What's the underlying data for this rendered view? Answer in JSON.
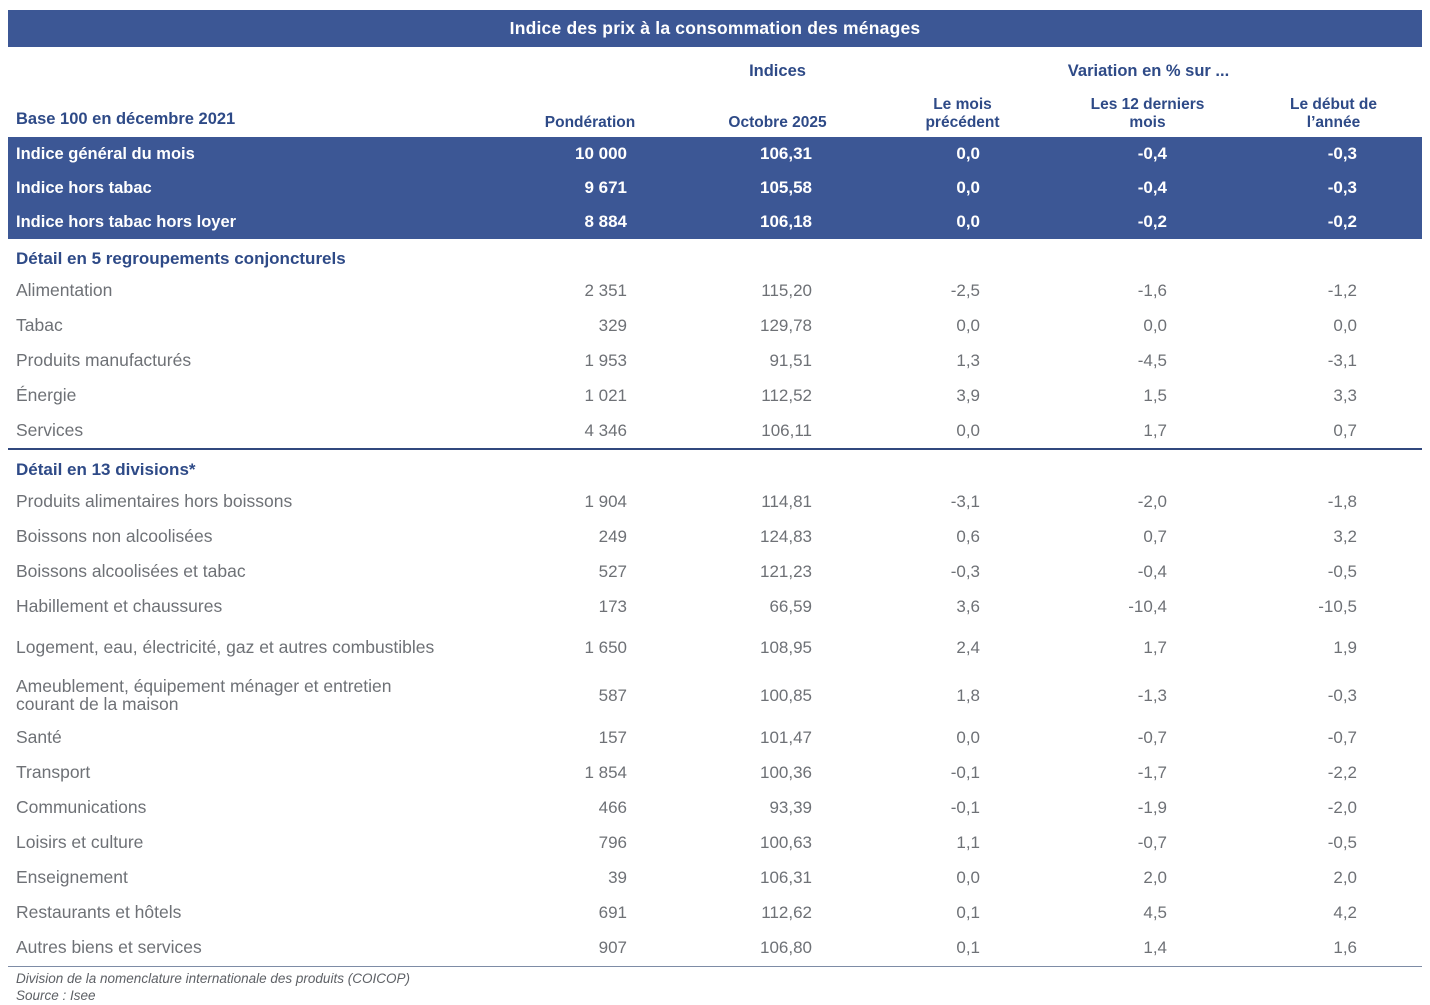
{
  "title": "Indice des prix à la consommation des ménages",
  "header": {
    "group_indices": "Indices",
    "group_variation": "Variation en % sur ...",
    "base_label": "Base 100 en décembre 2021",
    "columns": [
      "Pondération",
      "Octobre 2025",
      "Le mois\nprécédent",
      "Les 12 derniers\nmois",
      "Le début de\nl’année"
    ]
  },
  "summary_rows": [
    {
      "label": "Indice général du mois",
      "values": [
        "10 000",
        "106,31",
        "0,0",
        "-0,4",
        "-0,3"
      ]
    },
    {
      "label": "Indice hors tabac",
      "values": [
        "9 671",
        "105,58",
        "0,0",
        "-0,4",
        "-0,3"
      ]
    },
    {
      "label": "Indice hors tabac hors loyer",
      "values": [
        "8 884",
        "106,18",
        "0,0",
        "-0,2",
        "-0,2"
      ]
    }
  ],
  "sections": [
    {
      "heading": "Détail en 5 regroupements conjoncturels",
      "rows": [
        {
          "label": "Alimentation",
          "values": [
            "2 351",
            "115,20",
            "-2,5",
            "-1,6",
            "-1,2"
          ]
        },
        {
          "label": "Tabac",
          "values": [
            "329",
            "129,78",
            "0,0",
            "0,0",
            "0,0"
          ]
        },
        {
          "label": "Produits manufacturés",
          "values": [
            "1 953",
            "91,51",
            "1,3",
            "-4,5",
            "-3,1"
          ]
        },
        {
          "label": "Énergie",
          "values": [
            "1 021",
            "112,52",
            "3,9",
            "1,5",
            "3,3"
          ]
        },
        {
          "label": "Services",
          "values": [
            "4 346",
            "106,11",
            "0,0",
            "1,7",
            "0,7"
          ]
        }
      ]
    },
    {
      "heading": "Détail en 13 divisions*",
      "rows": [
        {
          "label": "Produits alimentaires hors boissons",
          "values": [
            "1 904",
            "114,81",
            "-3,1",
            "-2,0",
            "-1,8"
          ]
        },
        {
          "label": "Boissons non alcoolisées",
          "values": [
            "249",
            "124,83",
            "0,6",
            "0,7",
            "3,2"
          ]
        },
        {
          "label": "Boissons alcoolisées et tabac",
          "values": [
            "527",
            "121,23",
            "-0,3",
            "-0,4",
            "-0,5"
          ]
        },
        {
          "label": "Habillement et chaussures",
          "values": [
            "173",
            "66,59",
            "3,6",
            "-10,4",
            "-10,5"
          ]
        },
        {
          "label": "Logement, eau, électricité, gaz et autres combustibles",
          "tall": true,
          "values": [
            "1 650",
            "108,95",
            "2,4",
            "1,7",
            "1,9"
          ]
        },
        {
          "label": "Ameublement, équipement ménager et entretien courant de la maison",
          "tall": true,
          "values": [
            "587",
            "100,85",
            "1,8",
            "-1,3",
            "-0,3"
          ]
        },
        {
          "label": "Santé",
          "values": [
            "157",
            "101,47",
            "0,0",
            "-0,7",
            "-0,7"
          ]
        },
        {
          "label": "Transport",
          "values": [
            "1 854",
            "100,36",
            "-0,1",
            "-1,7",
            "-2,2"
          ]
        },
        {
          "label": "Communications",
          "values": [
            "466",
            "93,39",
            "-0,1",
            "-1,9",
            "-2,0"
          ]
        },
        {
          "label": "Loisirs et culture",
          "values": [
            "796",
            "100,63",
            "1,1",
            "-0,7",
            "-0,5"
          ]
        },
        {
          "label": "Enseignement",
          "values": [
            "39",
            "106,31",
            "0,0",
            "2,0",
            "2,0"
          ]
        },
        {
          "label": "Restaurants et hôtels",
          "values": [
            "691",
            "112,62",
            "0,1",
            "4,5",
            "4,2"
          ]
        },
        {
          "label": "Autres biens et services",
          "values": [
            "907",
            "106,80",
            "0,1",
            "1,4",
            "1,6"
          ]
        }
      ]
    }
  ],
  "footnotes": [
    "Division de la nomenclature internationale des produits (COICOP)",
    "Source : Isee"
  ]
}
